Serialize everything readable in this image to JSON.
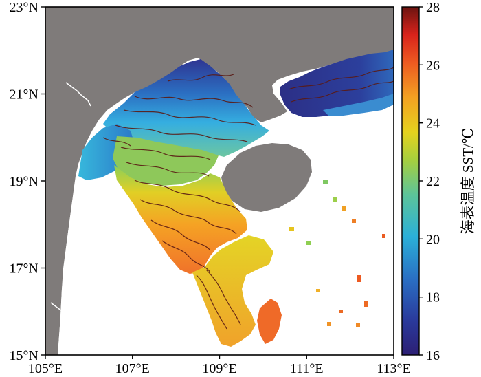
{
  "map": {
    "lon_ticks": [
      "105°E",
      "107°E",
      "109°E",
      "111°E",
      "113°E"
    ],
    "lat_ticks": [
      "23°N",
      "21°N",
      "19°N",
      "17°N",
      "15°N"
    ],
    "extent": {
      "lon": [
        105,
        113
      ],
      "lat": [
        15,
        23
      ]
    },
    "land_color": "#7f7b7a",
    "no_data_color": "#ffffff",
    "contour_color": "#5a1a14"
  },
  "colorbar": {
    "label": "海表温度 SST/℃",
    "range": [
      16,
      28
    ],
    "tick_labels": [
      "28",
      "26",
      "24",
      "22",
      "20",
      "18",
      "16"
    ],
    "colormap": "jet"
  }
}
